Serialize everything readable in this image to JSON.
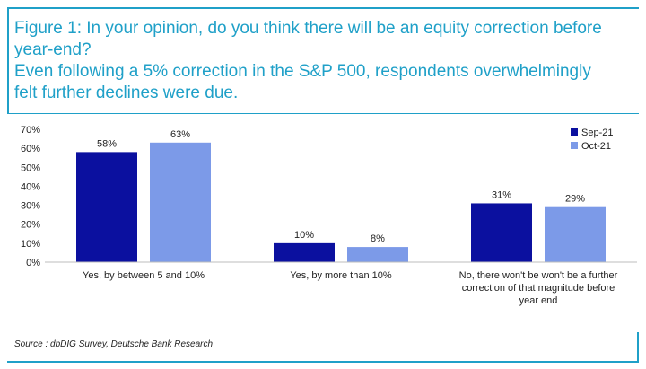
{
  "title_lines": [
    "Figure 1: In your opinion, do you think there will be an equity correction before",
    "year-end?",
    "Even following a 5% correction in the S&P 500, respondents overwhelmingly",
    "felt further declines were due."
  ],
  "source": "Source : dbDIG Survey, Deutsche Bank Research",
  "colors": {
    "accent": "#1fa0c8",
    "sep21": "#0b109f",
    "oct21": "#7c9ae8"
  },
  "chart_data": {
    "type": "bar",
    "categories": [
      [
        "Yes, by between 5 and 10%"
      ],
      [
        "Yes, by more than 10%"
      ],
      [
        "No, there won't be won't be a further",
        "correction of that magnitude before",
        "year end"
      ]
    ],
    "series": [
      {
        "name": "Sep-21",
        "values": [
          58,
          10,
          31
        ],
        "labels": [
          "58%",
          "10%",
          "31%"
        ],
        "color": "#0b109f"
      },
      {
        "name": "Oct-21",
        "values": [
          63,
          8,
          29
        ],
        "labels": [
          "63%",
          "8%",
          "29%"
        ],
        "color": "#7c9ae8"
      }
    ],
    "ylim": [
      0,
      70
    ],
    "yticks": [
      "0%",
      "10%",
      "20%",
      "30%",
      "40%",
      "50%",
      "60%",
      "70%"
    ],
    "grid": false,
    "legend": "top-right"
  }
}
